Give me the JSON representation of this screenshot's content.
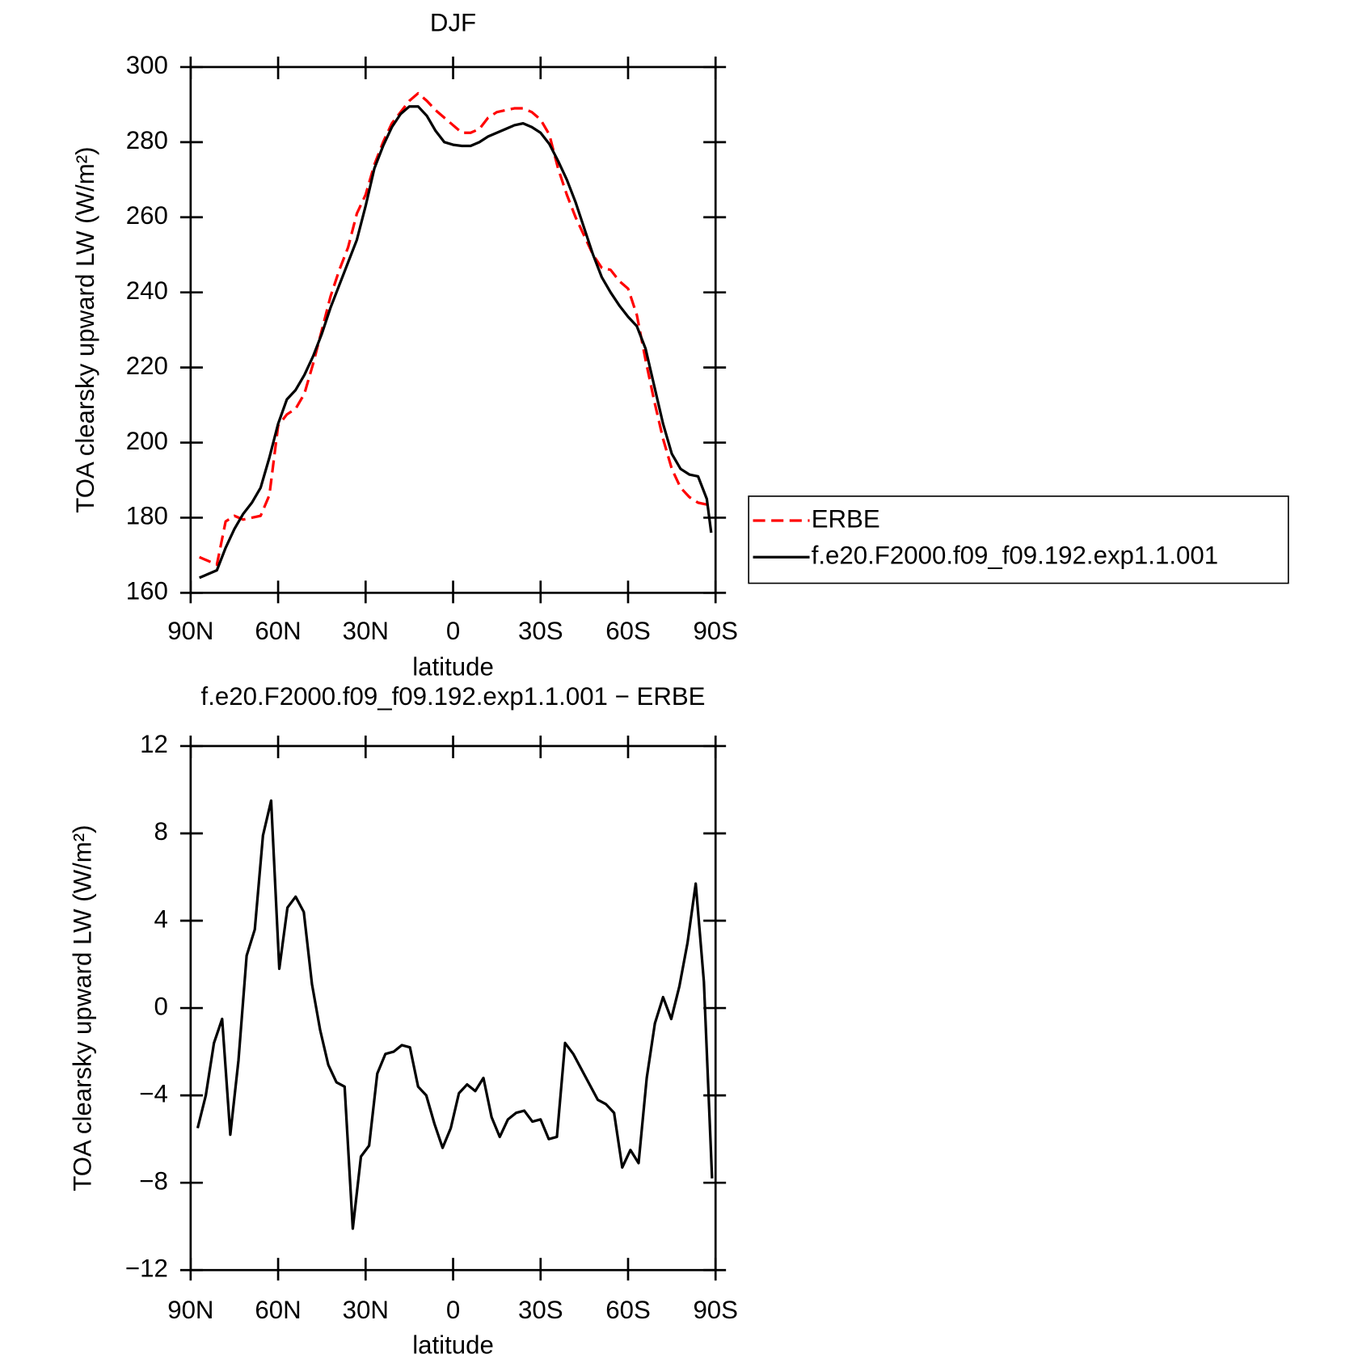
{
  "chart_data": [
    {
      "type": "line",
      "title": "DJF",
      "xlabel": "latitude",
      "ylabel": "TOA clearsky upward LW (W/m²)",
      "x": [
        87,
        84,
        81,
        78,
        75,
        72,
        69,
        66,
        63,
        60,
        57,
        54,
        51,
        48,
        45,
        42,
        39,
        36,
        33,
        30,
        27,
        24,
        21,
        18,
        15,
        12,
        9,
        6,
        3,
        0,
        -3,
        -6,
        -9,
        -12,
        -15,
        -18,
        -21,
        -24,
        -27,
        -30,
        -33,
        -36,
        -39,
        -42,
        -45,
        -48,
        -51,
        -54,
        -57,
        -60,
        -63,
        -66,
        -69,
        -72,
        -75,
        -78,
        -81,
        -84,
        -87,
        -88.5
      ],
      "series": [
        {
          "name": "ERBE",
          "color": "#ff0000",
          "dash": true,
          "values": [
            169.5,
            168.5,
            167.5,
            179,
            180.5,
            179.5,
            180,
            180.5,
            186,
            204.5,
            207.5,
            209,
            213,
            221,
            230,
            239,
            246,
            252,
            261,
            266,
            274,
            280,
            285,
            288,
            291,
            293,
            291,
            288.5,
            286.5,
            284.5,
            282.5,
            282.5,
            283.5,
            286.5,
            288,
            288.5,
            289,
            289,
            288,
            286,
            282,
            273,
            266,
            260,
            255,
            250,
            246.5,
            246,
            243,
            241,
            234,
            222,
            211,
            201,
            193,
            188,
            185.5,
            184,
            183.5,
            183
          ]
        },
        {
          "name": "f.e20.F2000.f09_f09.192.exp1.1.001",
          "color": "#000000",
          "dash": false,
          "values": [
            164,
            165,
            166,
            172,
            177,
            181,
            184,
            188,
            196,
            205,
            211.5,
            214,
            218,
            223,
            229,
            236,
            242,
            248,
            254,
            263,
            273,
            279,
            284,
            287.5,
            289.5,
            289.5,
            287,
            283,
            280,
            279.3,
            279,
            279,
            280,
            281.5,
            282.5,
            283.5,
            284.5,
            285,
            284,
            282.5,
            279.5,
            275,
            270,
            264,
            257,
            250,
            244,
            240,
            236.5,
            233.5,
            231,
            225,
            215,
            205,
            197,
            193,
            191.5,
            191,
            185,
            176
          ]
        }
      ],
      "xlim": [
        90,
        -90
      ],
      "xticks": [
        {
          "value": 90,
          "label": "90N"
        },
        {
          "value": 60,
          "label": "60N"
        },
        {
          "value": 30,
          "label": "30N"
        },
        0,
        {
          "value": -30,
          "label": "30S"
        },
        {
          "value": -60,
          "label": "60S"
        },
        {
          "value": -90,
          "label": "90S"
        }
      ],
      "ylim": [
        160,
        300
      ],
      "yticks": [
        160,
        180,
        200,
        220,
        240,
        260,
        280,
        300
      ],
      "legend": "right"
    },
    {
      "type": "line",
      "title": "f.e20.F2000.f09_f09.192.exp1.1.001 − ERBE",
      "xlabel": "latitude",
      "ylabel": "TOA clearsky upward LW (W/m²)",
      "x": [
        87.6,
        84.8,
        82.0,
        79.2,
        76.4,
        73.6,
        70.8,
        68.0,
        65.2,
        62.4,
        59.6,
        56.8,
        54.0,
        51.2,
        48.4,
        45.6,
        42.8,
        40.0,
        37.2,
        34.4,
        31.6,
        28.8,
        26.0,
        23.2,
        20.4,
        17.6,
        14.8,
        12.0,
        9.2,
        6.4,
        3.6,
        0.8,
        -2.0,
        -4.8,
        -7.6,
        -10.4,
        -13.2,
        -16.0,
        -18.8,
        -21.6,
        -24.4,
        -27.2,
        -30.0,
        -32.8,
        -35.6,
        -38.4,
        -41.2,
        -44.0,
        -46.8,
        -49.6,
        -52.4,
        -55.2,
        -58.0,
        -60.8,
        -63.6,
        -66.4,
        -69.2,
        -72.0,
        -74.8,
        -77.6,
        -80.4,
        -83.2,
        -86.0,
        -88.8
      ],
      "series": [
        {
          "color": "#000000",
          "dash": false,
          "values": [
            -5.5,
            -4,
            -1.6,
            -0.5,
            -5.8,
            -2.4,
            2.4,
            3.6,
            7.9,
            9.5,
            1.8,
            4.6,
            5.1,
            4.4,
            1.1,
            -1,
            -2.6,
            -3.4,
            -3.6,
            -10.1,
            -6.8,
            -6.3,
            -3,
            -2.1,
            -2,
            -1.7,
            -1.8,
            -3.6,
            -4,
            -5.3,
            -6.4,
            -5.5,
            -3.9,
            -3.5,
            -3.8,
            -3.2,
            -5,
            -5.9,
            -5.1,
            -4.8,
            -4.7,
            -5.2,
            -5.1,
            -6,
            -5.9,
            -1.6,
            -2.1,
            -2.8,
            -3.5,
            -4.2,
            -4.4,
            -4.8,
            -7.3,
            -6.5,
            -7.1,
            -3.2,
            -0.7,
            0.5,
            -0.5,
            1,
            3,
            5.7,
            1.2,
            -7.8
          ]
        }
      ],
      "xlim": [
        90,
        -90
      ],
      "xticks": [
        {
          "value": 90,
          "label": "90N"
        },
        {
          "value": 60,
          "label": "60N"
        },
        {
          "value": 30,
          "label": "30N"
        },
        0,
        {
          "value": -30,
          "label": "30S"
        },
        {
          "value": -60,
          "label": "60S"
        },
        {
          "value": -90,
          "label": "90S"
        }
      ],
      "ylim": [
        -12,
        12
      ],
      "yticks": [
        {
          "value": -12,
          "label": "−12"
        },
        {
          "value": -8,
          "label": "−8"
        },
        {
          "value": -4,
          "label": "−4"
        },
        0,
        4,
        8,
        12
      ]
    }
  ]
}
